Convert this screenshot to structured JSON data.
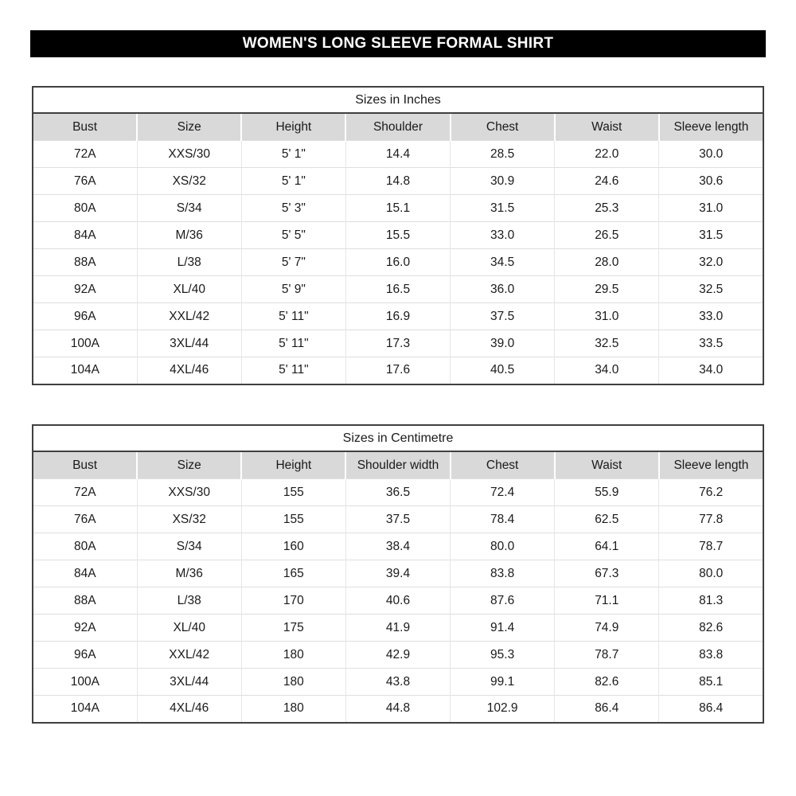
{
  "page_title": "WOMEN'S LONG SLEEVE FORMAL SHIRT",
  "colors": {
    "title_bg": "#000000",
    "title_text": "#ffffff",
    "header_row_bg": "#d9d9d9",
    "outer_border": "#404040",
    "grid_line": "#dedede"
  },
  "tables": [
    {
      "caption": "Sizes in Inches",
      "columns": [
        "Bust",
        "Size",
        "Height",
        "Shoulder",
        "Chest",
        "Waist",
        "Sleeve length"
      ],
      "rows": [
        [
          "72A",
          "XXS/30",
          "5' 1\"",
          "14.4",
          "28.5",
          "22.0",
          "30.0"
        ],
        [
          "76A",
          "XS/32",
          "5' 1\"",
          "14.8",
          "30.9",
          "24.6",
          "30.6"
        ],
        [
          "80A",
          "S/34",
          "5' 3\"",
          "15.1",
          "31.5",
          "25.3",
          "31.0"
        ],
        [
          "84A",
          "M/36",
          "5' 5\"",
          "15.5",
          "33.0",
          "26.5",
          "31.5"
        ],
        [
          "88A",
          "L/38",
          "5' 7\"",
          "16.0",
          "34.5",
          "28.0",
          "32.0"
        ],
        [
          "92A",
          "XL/40",
          "5' 9\"",
          "16.5",
          "36.0",
          "29.5",
          "32.5"
        ],
        [
          "96A",
          "XXL/42",
          "5' 11\"",
          "16.9",
          "37.5",
          "31.0",
          "33.0"
        ],
        [
          "100A",
          "3XL/44",
          "5' 11\"",
          "17.3",
          "39.0",
          "32.5",
          "33.5"
        ],
        [
          "104A",
          "4XL/46",
          "5' 11\"",
          "17.6",
          "40.5",
          "34.0",
          "34.0"
        ]
      ]
    },
    {
      "caption": "Sizes in Centimetre",
      "columns": [
        "Bust",
        "Size",
        "Height",
        "Shoulder width",
        "Chest",
        "Waist",
        "Sleeve length"
      ],
      "rows": [
        [
          "72A",
          "XXS/30",
          "155",
          "36.5",
          "72.4",
          "55.9",
          "76.2"
        ],
        [
          "76A",
          "XS/32",
          "155",
          "37.5",
          "78.4",
          "62.5",
          "77.8"
        ],
        [
          "80A",
          "S/34",
          "160",
          "38.4",
          "80.0",
          "64.1",
          "78.7"
        ],
        [
          "84A",
          "M/36",
          "165",
          "39.4",
          "83.8",
          "67.3",
          "80.0"
        ],
        [
          "88A",
          "L/38",
          "170",
          "40.6",
          "87.6",
          "71.1",
          "81.3"
        ],
        [
          "92A",
          "XL/40",
          "175",
          "41.9",
          "91.4",
          "74.9",
          "82.6"
        ],
        [
          "96A",
          "XXL/42",
          "180",
          "42.9",
          "95.3",
          "78.7",
          "83.8"
        ],
        [
          "100A",
          "3XL/44",
          "180",
          "43.8",
          "99.1",
          "82.6",
          "85.1"
        ],
        [
          "104A",
          "4XL/46",
          "180",
          "44.8",
          "102.9",
          "86.4",
          "86.4"
        ]
      ]
    }
  ]
}
